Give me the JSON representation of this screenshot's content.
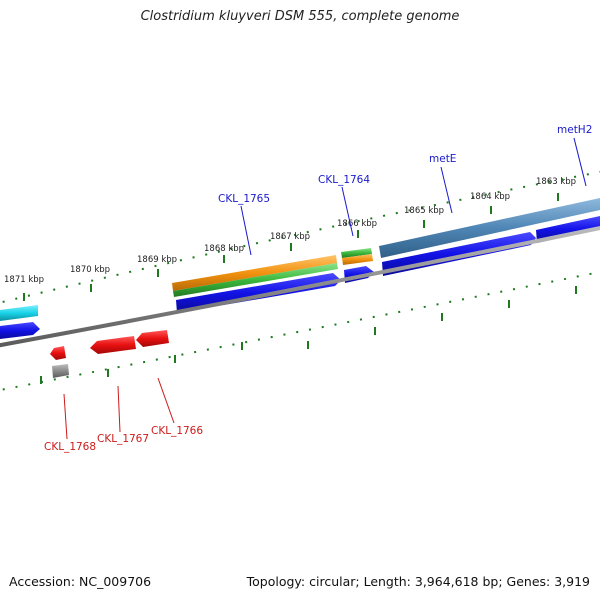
{
  "title": "Clostridium kluyveri DSM 555, complete genome",
  "footer": {
    "accession": "Accession: NC_009706",
    "topology": "Topology: circular; Length: 3,964,618 bp; Genes: 3,919"
  },
  "ticks": [
    "1871 kbp",
    "1870 kbp",
    "1869 kbp",
    "1868 kbp",
    "1867 kbp",
    "1866 kbp",
    "1865 kbp",
    "1864 kbp",
    "1863 kbp"
  ],
  "gene_labels": {
    "ckl_1765": "CKL_1765",
    "ckl_1764": "CKL_1764",
    "mete": "metE",
    "meth2": "metH2",
    "ckl_1768": "CKL_1768",
    "ckl_1767": "CKL_1767",
    "ckl_1766": "CKL_1766"
  },
  "colors": {
    "forward_label": "#1a1acc",
    "reverse_label": "#cc1a1a",
    "gene_blue": "#1212e6",
    "gene_red": "#e81010",
    "gene_cyan": "#19d3e8",
    "steelblue": "#4f86b5",
    "orange": "#f2920f",
    "green": "#3cb83c",
    "backbone": "#8a8a8a",
    "tick_green": "#1f7a1f"
  }
}
